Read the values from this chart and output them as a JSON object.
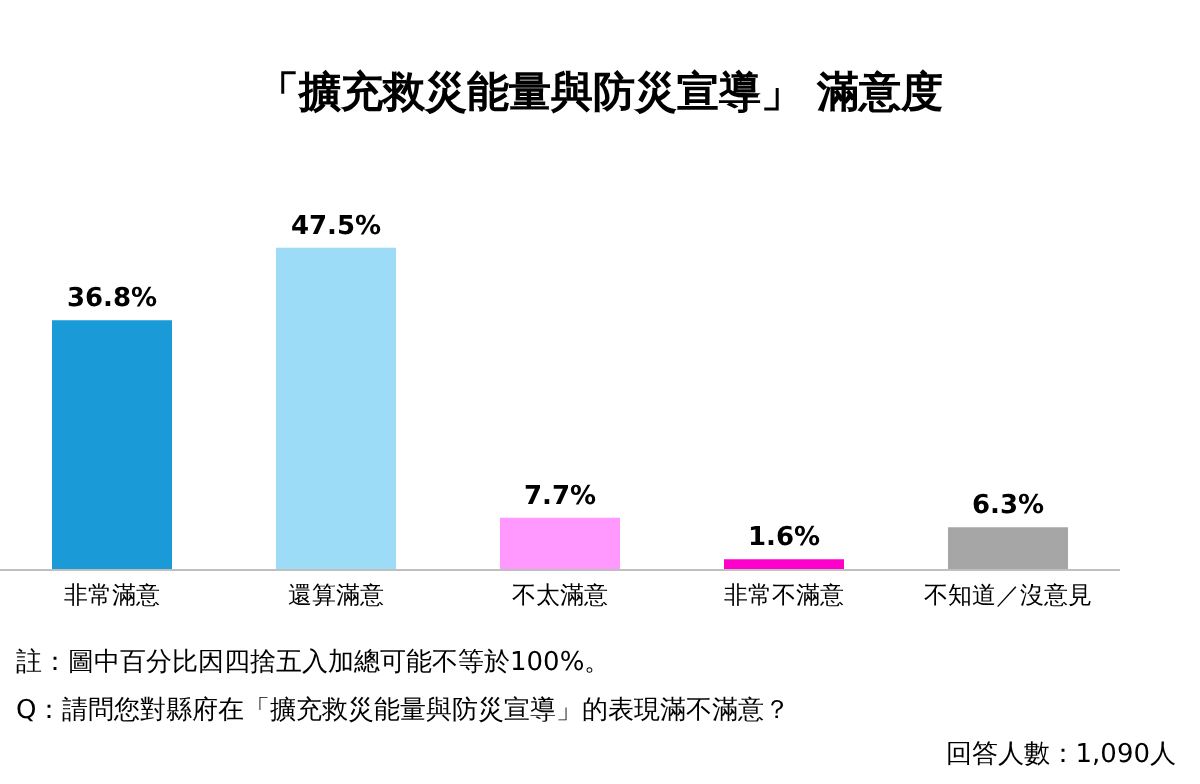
{
  "chart_data": {
    "type": "bar",
    "title": "「擴充救災能量與防災宣導」 滿意度",
    "categories": [
      "非常滿意",
      "還算滿意",
      "不太滿意",
      "非常不滿意",
      "不知道／沒意見"
    ],
    "values": [
      36.8,
      47.5,
      7.7,
      1.6,
      6.3
    ],
    "colors": [
      "#1a9ad6",
      "#9ddcf7",
      "#ff99ff",
      "#ff00cc",
      "#a6a6a6"
    ],
    "value_labels": [
      "36.8%",
      "47.5%",
      "7.7%",
      "1.6%",
      "6.3%"
    ],
    "annotations": [
      "註：圖中百分比因四捨五入加總可能不等於100%。",
      "Q：請問您對縣府在「擴充救災能量與防災宣導」的表現滿不滿意？",
      "回答人數：1,090人"
    ]
  }
}
